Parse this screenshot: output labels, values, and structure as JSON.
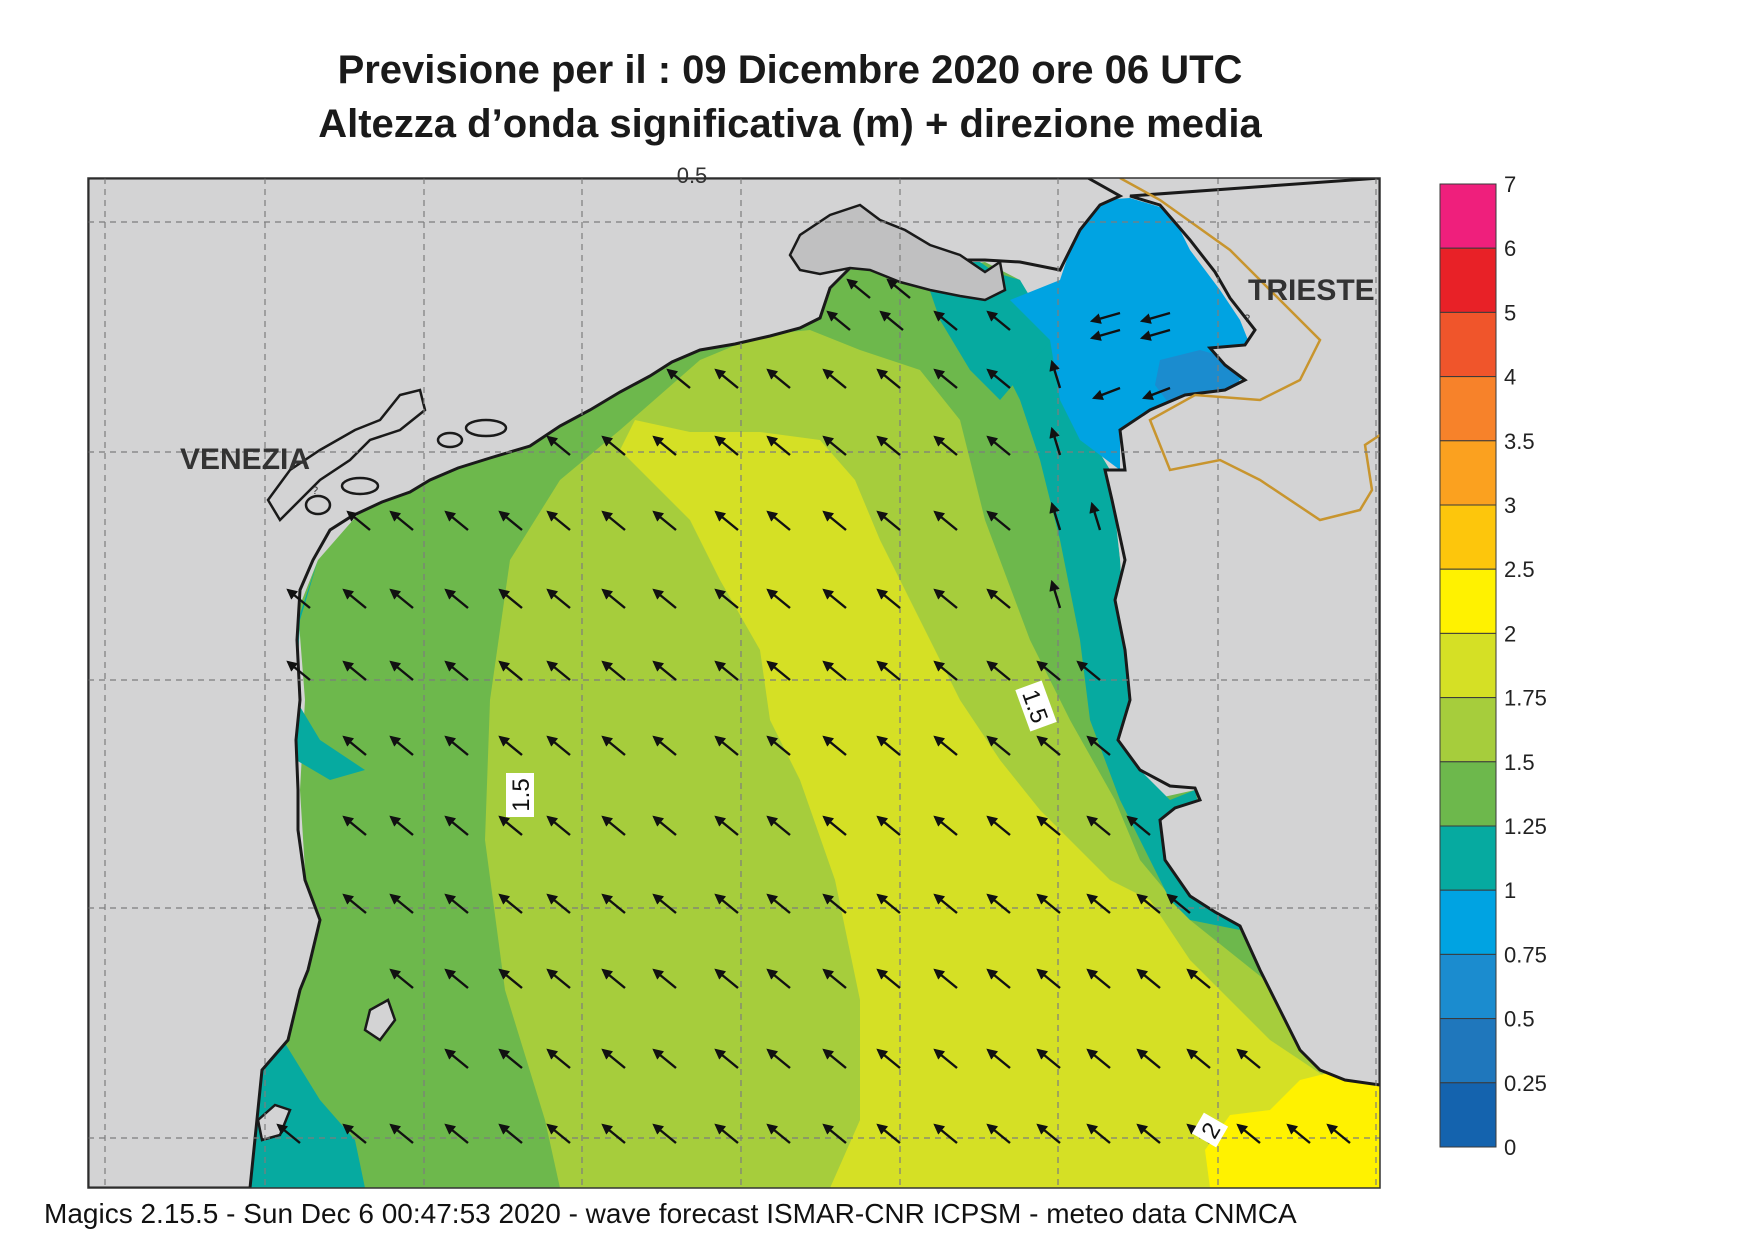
{
  "title": {
    "line1": "Previsione per il  :  09 Dicembre  2020   ore 06 UTC",
    "line2": "Altezza d’onda significativa (m) + direzione media"
  },
  "labels": {
    "top_edge": "0.5",
    "city_west": "VENEZIA",
    "city_east": "TRIESTE",
    "contour_1": "1.5",
    "contour_2": "1.5",
    "contour_3": "2"
  },
  "legend": {
    "ticks": [
      "7",
      "6",
      "5",
      "4",
      "3.5",
      "3",
      "2.5",
      "2",
      "1.75",
      "1.5",
      "1.25",
      "1",
      "0.75",
      "0.5",
      "0.25",
      "0"
    ],
    "colors": [
      "#ef1f7c",
      "#e82127",
      "#f0552b",
      "#f7822a",
      "#fba11f",
      "#fdc60c",
      "#fff200",
      "#d5e025",
      "#a6cd3c",
      "#6db84c",
      "#06aaa0",
      "#00a3e2",
      "#1b8ccf",
      "#1f77bc",
      "#1463ae"
    ]
  },
  "colors": {
    "land": "#d3d3d4",
    "sea_025_05": "#1f77bc",
    "sea_05_075": "#1b8ccf",
    "sea_075_1": "#00a3e2",
    "sea_1_125": "#06aaa0",
    "sea_125_15": "#6db84c",
    "sea_15_175": "#a6cd3c",
    "sea_175_2": "#d5e025",
    "sea_2_25": "#fff200",
    "border": "#c8952e",
    "grid": "#7d7d7d"
  },
  "footer": "Magics 2.15.5 - Sun Dec  6 00:47:53 2020 - wave forecast  ISMAR-CNR  ICPSM - meteo data   CNMCA"
}
